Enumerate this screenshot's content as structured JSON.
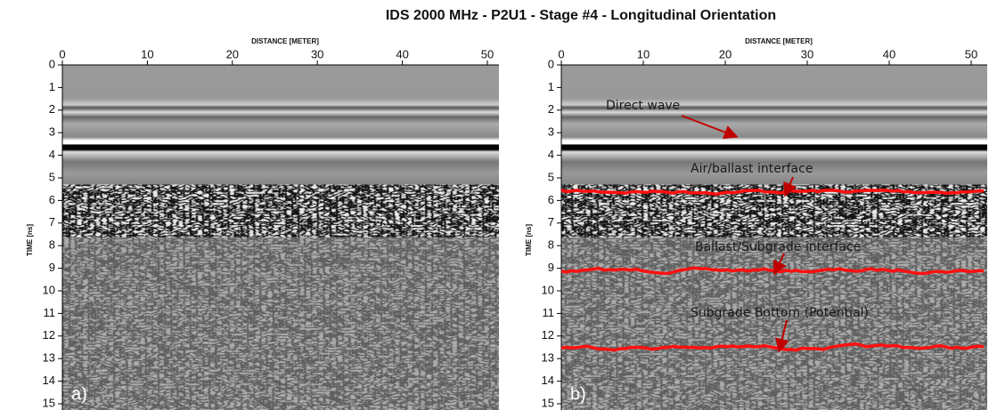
{
  "title": "IDS 2000 MHz - P2U1 - Stage #4 - Longitudinal Orientation",
  "panels": [
    {
      "x_axis_label": "DISTANCE [METER]",
      "y_axis_label": "TIME [ns]",
      "x_ticks": [
        0,
        10,
        20,
        30,
        40,
        50
      ],
      "y_ticks": [
        0,
        1,
        2,
        3,
        4,
        5,
        6,
        7,
        8,
        9,
        10,
        11,
        12,
        13,
        14,
        15
      ],
      "panel_label": "a)"
    },
    {
      "x_axis_label": "DISTANCE [METER]",
      "y_axis_label": "TIME [ns]",
      "x_ticks": [
        0,
        10,
        20,
        30,
        40,
        50
      ],
      "y_ticks": [
        0,
        1,
        2,
        3,
        4,
        5,
        6,
        7,
        8,
        9,
        10,
        11,
        12,
        13,
        14,
        15
      ],
      "panel_label": "b)",
      "annotations": [
        "Direct wave",
        "Air/ballast interface",
        "Ballast/Subgrade interface",
        "Subgrade Bottom (Potential)"
      ]
    }
  ]
}
